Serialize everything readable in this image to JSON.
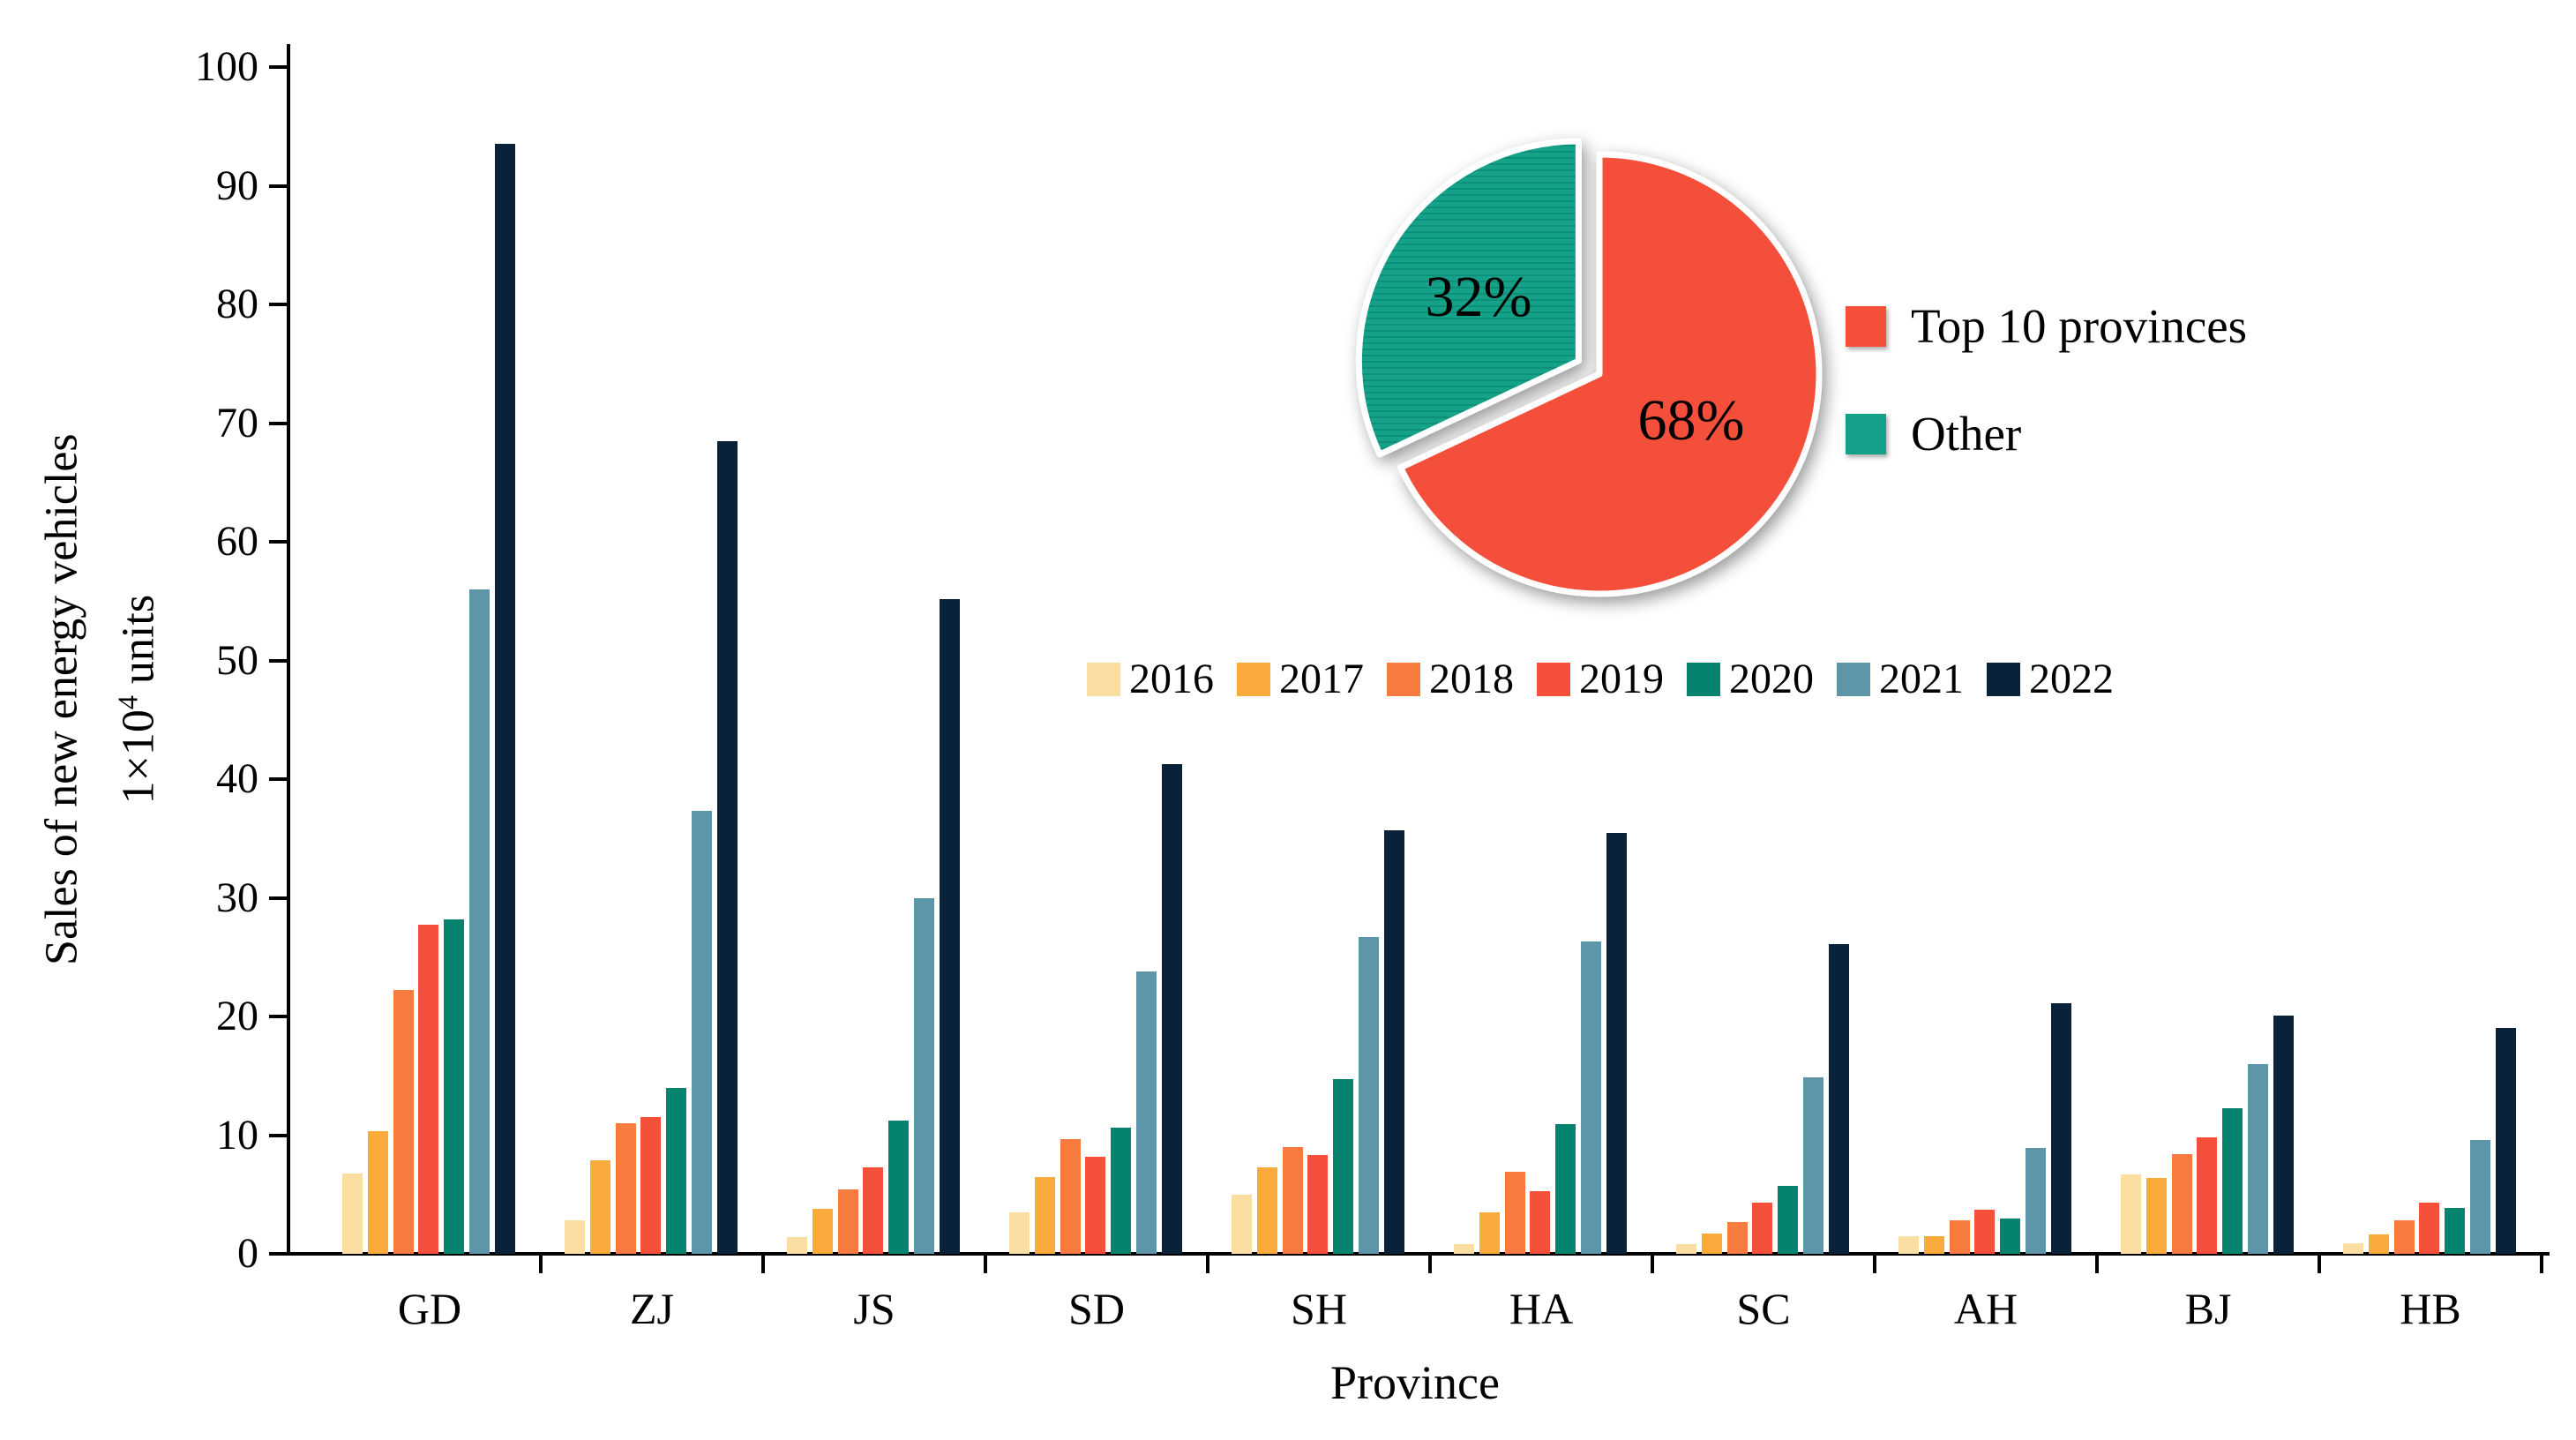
{
  "chart_data": [
    {
      "type": "bar",
      "title": "",
      "xlabel": "Province",
      "ylabel_line1": "Sales of new energy vehicles",
      "ylabel_line2_pre": "1×10",
      "ylabel_line2_sup": "4",
      "ylabel_line2_post": " units",
      "ylim": [
        0,
        100
      ],
      "y_ticks": [
        0,
        10,
        20,
        30,
        40,
        50,
        60,
        70,
        80,
        90,
        100
      ],
      "grid": false,
      "legend_position": "inside-center-right",
      "categories": [
        "GD",
        "ZJ",
        "JS",
        "SD",
        "SH",
        "HA",
        "SC",
        "AH",
        "BJ",
        "HB"
      ],
      "series": [
        {
          "name": "2016",
          "color": "#FBDFA2",
          "values": [
            6.8,
            2.8,
            1.4,
            3.5,
            5.0,
            0.8,
            0.8,
            1.5,
            6.7,
            0.9
          ]
        },
        {
          "name": "2017",
          "color": "#FBAA3C",
          "values": [
            10.3,
            7.9,
            3.8,
            6.5,
            7.3,
            3.5,
            1.7,
            1.5,
            6.4,
            1.6
          ]
        },
        {
          "name": "2018",
          "color": "#F87B40",
          "values": [
            22.2,
            11.0,
            5.4,
            9.7,
            9.0,
            6.9,
            2.7,
            2.8,
            8.4,
            2.8
          ]
        },
        {
          "name": "2019",
          "color": "#F4503A",
          "values": [
            27.7,
            11.5,
            7.3,
            8.2,
            8.3,
            5.3,
            4.3,
            3.7,
            9.8,
            4.3
          ]
        },
        {
          "name": "2020",
          "color": "#05836E",
          "values": [
            28.2,
            14.0,
            11.2,
            10.6,
            14.7,
            10.9,
            5.7,
            3.0,
            12.3,
            3.9
          ]
        },
        {
          "name": "2021",
          "color": "#5C96A8",
          "values": [
            56.0,
            37.3,
            30.0,
            23.8,
            26.7,
            26.3,
            14.9,
            8.9,
            16.0,
            9.6
          ]
        },
        {
          "name": "2022",
          "color": "#0A2239",
          "values": [
            93.5,
            68.5,
            55.2,
            41.3,
            35.7,
            35.5,
            26.1,
            21.1,
            20.1,
            19.0
          ]
        }
      ]
    },
    {
      "type": "pie",
      "title": "",
      "slices": [
        {
          "label": "Top 10 provinces",
          "value": 68,
          "pct_label": "68%",
          "color": "#F4503A",
          "exploded": false
        },
        {
          "label": "Other",
          "value": 32,
          "pct_label": "32%",
          "color": "#14A189",
          "exploded": true
        }
      ],
      "legend_position": "right-of-pie"
    }
  ]
}
